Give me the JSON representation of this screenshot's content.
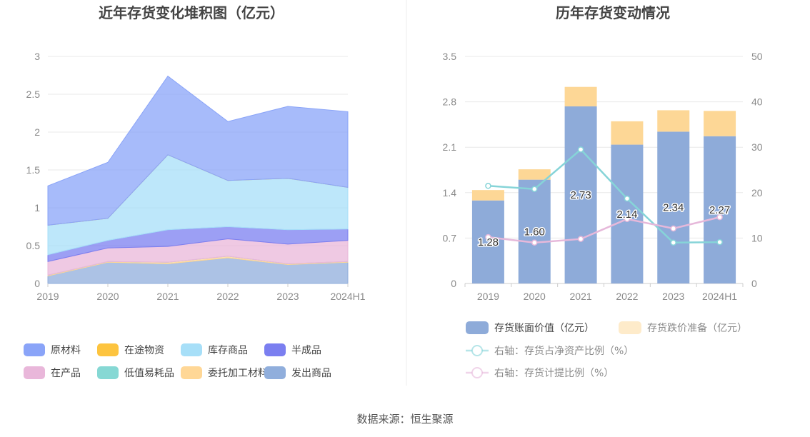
{
  "source_label": "数据来源：恒生聚源",
  "chart_data": [
    {
      "type": "area",
      "title": "近年存货变化堆积图（亿元）",
      "categories": [
        "2019",
        "2020",
        "2021",
        "2022",
        "2023",
        "2024H1"
      ],
      "ylim": [
        0,
        3
      ],
      "yticks": [
        "0",
        "0.5",
        "1",
        "1.5",
        "2",
        "2.5",
        "3"
      ],
      "stacked": true,
      "grid": true,
      "legend_position": "bottom",
      "series": [
        {
          "name": "原材料",
          "color": "#8aa4f8",
          "values": [
            0.52,
            0.74,
            1.04,
            0.78,
            0.95,
            1.0
          ]
        },
        {
          "name": "在途物资",
          "color": "#fdc43f",
          "values": [
            0,
            0,
            0,
            0,
            0,
            0
          ]
        },
        {
          "name": "库存商品",
          "color": "#a7dff8",
          "values": [
            0.39,
            0.29,
            0.99,
            0.61,
            0.68,
            0.55
          ]
        },
        {
          "name": "半成品",
          "color": "#7b7ff0",
          "values": [
            0.09,
            0.1,
            0.22,
            0.16,
            0.19,
            0.15
          ]
        },
        {
          "name": "在产品",
          "color": "#e9b7da",
          "values": [
            0.18,
            0.18,
            0.21,
            0.23,
            0.26,
            0.28
          ]
        },
        {
          "name": "低值易耗品",
          "color": "#86d8d4",
          "values": [
            0,
            0,
            0,
            0,
            0,
            0
          ]
        },
        {
          "name": "委托加工材料",
          "color": "#ffd796",
          "values": [
            0.01,
            0.01,
            0.02,
            0.02,
            0.01,
            0.01
          ]
        },
        {
          "name": "发出商品",
          "color": "#90aedc",
          "values": [
            0.1,
            0.28,
            0.26,
            0.34,
            0.25,
            0.28
          ]
        }
      ]
    },
    {
      "type": "bar",
      "title": "历年存货变动情况",
      "categories": [
        "2019",
        "2020",
        "2021",
        "2022",
        "2023",
        "2024H1"
      ],
      "ylim": [
        0,
        3.5
      ],
      "yticks": [
        "0",
        "0.7",
        "1.4",
        "2.1",
        "2.8",
        "3.5"
      ],
      "y2lim": [
        0,
        50
      ],
      "y2ticks": [
        "0",
        "10",
        "20",
        "30",
        "40",
        "50"
      ],
      "stacked": true,
      "grid": true,
      "legend_position": "bottom",
      "series": [
        {
          "name": "存货账面价值（亿元）",
          "color": "#8eabd9",
          "values": [
            1.28,
            1.6,
            2.73,
            2.14,
            2.34,
            2.27
          ],
          "labels": [
            "1.28",
            "1.60",
            "2.73",
            "2.14",
            "2.34",
            "2.27"
          ]
        },
        {
          "name": "存货跌价准备（亿元）",
          "color": "#fdd796",
          "values": [
            0.16,
            0.16,
            0.3,
            0.36,
            0.33,
            0.39
          ]
        }
      ],
      "line_series": [
        {
          "name": "右轴：存货占净资产比例（%）",
          "color": "#86d4d8",
          "axis": "right",
          "values": [
            21.5,
            20.8,
            29.5,
            18.7,
            9.0,
            9.1
          ]
        },
        {
          "name": "右轴：存货计提比例（%）",
          "color": "#e6b8da",
          "axis": "right",
          "values": [
            10.2,
            9.0,
            9.8,
            14.2,
            12.1,
            14.6
          ]
        }
      ]
    }
  ]
}
